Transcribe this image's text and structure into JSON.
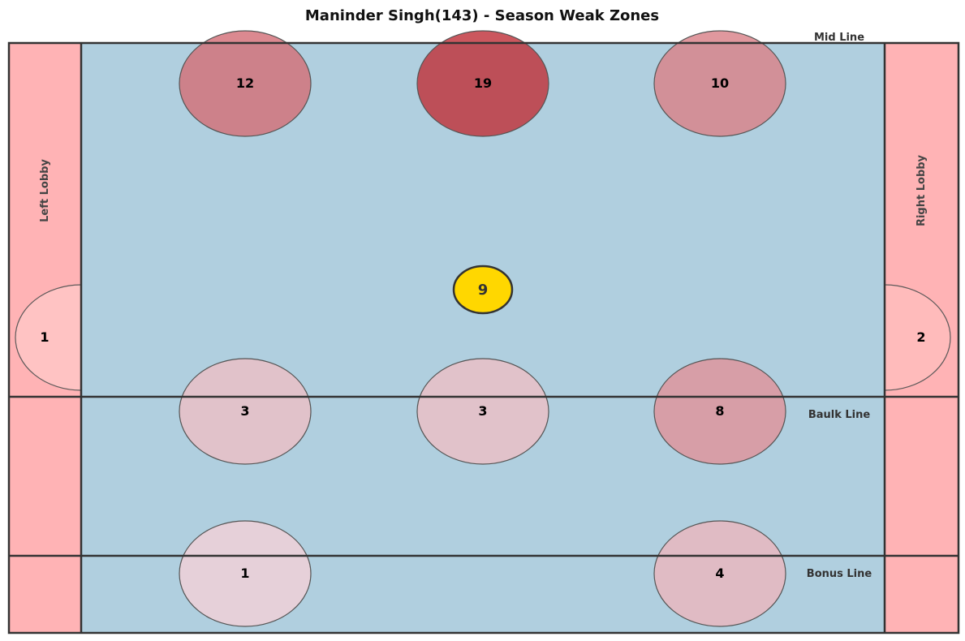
{
  "chart_data": {
    "type": "heatmap",
    "title": "Maninder Singh(143) - Season Weak Zones",
    "lines": {
      "mid": "Mid Line",
      "baulk": "Baulk Line",
      "bonus": "Bonus Line"
    },
    "lobbies": {
      "left": "Left Lobby",
      "right": "Right Lobby"
    },
    "grid": false,
    "legend": "none",
    "colors": {
      "court": "#b0cfdf",
      "lobby": "#ffb3b5",
      "border": "#333333",
      "marker": "#ffd700",
      "heat_low": "#f2d0d8",
      "heat_high": "#c0323a"
    },
    "max_value": 19,
    "player_marker": {
      "value": "9",
      "row": "mid",
      "col": "center"
    },
    "zones": [
      {
        "row": "top",
        "col": "left",
        "value": 12
      },
      {
        "row": "top",
        "col": "center",
        "value": 19
      },
      {
        "row": "top",
        "col": "right",
        "value": 10
      },
      {
        "row": "baulk",
        "col": "left",
        "value": 3
      },
      {
        "row": "baulk",
        "col": "center",
        "value": 3
      },
      {
        "row": "baulk",
        "col": "right",
        "value": 8
      },
      {
        "row": "bonus",
        "col": "left",
        "value": 1
      },
      {
        "row": "bonus",
        "col": "right",
        "value": 4
      },
      {
        "row": "lobby",
        "col": "left",
        "value": 1
      },
      {
        "row": "lobby",
        "col": "right",
        "value": 2
      }
    ]
  }
}
